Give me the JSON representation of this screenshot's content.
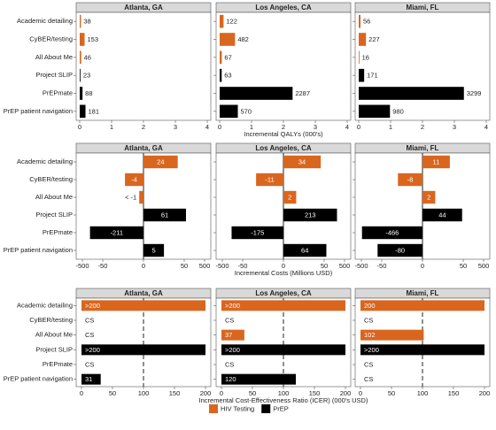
{
  "chart_data": [
    {
      "type": "bar",
      "orientation": "horizontal",
      "scale": "linear",
      "xlabel": "Incremental QALYs (000's)",
      "xlim": [
        0,
        4
      ],
      "xticks": [
        0,
        1,
        2,
        3,
        4
      ],
      "categories": [
        "Academic detailing",
        "CyBER/testing",
        "All About Me",
        "Project SLIP",
        "PrEPmate",
        "PrEP patient navigation"
      ],
      "category_colors": [
        "#d9661f",
        "#d9661f",
        "#d9661f",
        "#000000",
        "#000000",
        "#000000"
      ],
      "facets": [
        {
          "title": "Atlanta, GA",
          "values": [
            0.038,
            0.153,
            0.046,
            0.023,
            0.088,
            0.181
          ],
          "value_labels": [
            "38",
            "153",
            "46",
            "23",
            "88",
            "181"
          ]
        },
        {
          "title": "Los Angeles, CA",
          "values": [
            0.122,
            0.482,
            0.067,
            0.063,
            2.287,
            0.57
          ],
          "value_labels": [
            "122",
            "482",
            "67",
            "63",
            "2287",
            "570"
          ]
        },
        {
          "title": "Miami, FL",
          "values": [
            0.056,
            0.227,
            0.016,
            0.171,
            3.299,
            0.98
          ],
          "value_labels": [
            "56",
            "227",
            "16",
            "171",
            "3299",
            "980"
          ]
        }
      ]
    },
    {
      "type": "bar",
      "orientation": "horizontal",
      "scale": "asinh",
      "xlabel": "Incremental Costs (Millions USD)",
      "xlim": [
        -500,
        500
      ],
      "xticks": [
        -500,
        -50,
        0,
        50,
        500
      ],
      "vline": 0,
      "categories": [
        "Academic detailing",
        "CyBER/testing",
        "All About Me",
        "Project SLIP",
        "PrEPmate",
        "PrEP patient navigation"
      ],
      "category_colors": [
        "#d9661f",
        "#d9661f",
        "#d9661f",
        "#000000",
        "#000000",
        "#000000"
      ],
      "facets": [
        {
          "title": "Atlanta, GA",
          "values": [
            24,
            -4,
            -0.5,
            61,
            -211,
            5
          ],
          "value_labels": [
            "24",
            "-4",
            "< -1",
            "61",
            "-211",
            "5"
          ]
        },
        {
          "title": "Los Angeles, CA",
          "values": [
            34,
            -11,
            2,
            213,
            -175,
            64
          ],
          "value_labels": [
            "34",
            "-11",
            "2",
            "213",
            "-175",
            "64"
          ]
        },
        {
          "title": "Miami, FL",
          "values": [
            11,
            -8,
            2,
            44,
            -466,
            -80
          ],
          "value_labels": [
            "11",
            "-8",
            "2",
            "44",
            "-466",
            "-80"
          ]
        }
      ]
    },
    {
      "type": "bar",
      "orientation": "horizontal",
      "scale": "linear",
      "xlabel": "Incremental Cost-Effectiveness Ratio (ICER) (000's USD)",
      "xlim": [
        0,
        200
      ],
      "xticks": [
        0,
        50,
        100,
        150,
        200
      ],
      "vline": 100,
      "vline_dashed": true,
      "categories": [
        "Academic detailing",
        "CyBER/testing",
        "All About Me",
        "Project SLIP",
        "PrEPmate",
        "PrEP patient navigation"
      ],
      "category_colors": [
        "#d9661f",
        "#d9661f",
        "#d9661f",
        "#000000",
        "#000000",
        "#000000"
      ],
      "facets": [
        {
          "title": "Atlanta, GA",
          "values": [
            200,
            null,
            null,
            200,
            null,
            31
          ],
          "value_labels": [
            ">200",
            "CS",
            "CS",
            ">200",
            "CS",
            "31"
          ]
        },
        {
          "title": "Los Angeles, CA",
          "values": [
            200,
            null,
            37,
            200,
            null,
            120
          ],
          "value_labels": [
            ">200",
            "CS",
            "37",
            ">200",
            "CS",
            "120"
          ]
        },
        {
          "title": "Miami, FL",
          "values": [
            200,
            null,
            102,
            200,
            null,
            null
          ],
          "value_labels": [
            "200",
            "CS",
            "102",
            ">200",
            "CS",
            "CS"
          ]
        }
      ]
    }
  ],
  "legend": [
    {
      "name": "HIV Testing",
      "color": "#d9661f"
    },
    {
      "name": "PrEP",
      "color": "#000000"
    }
  ]
}
